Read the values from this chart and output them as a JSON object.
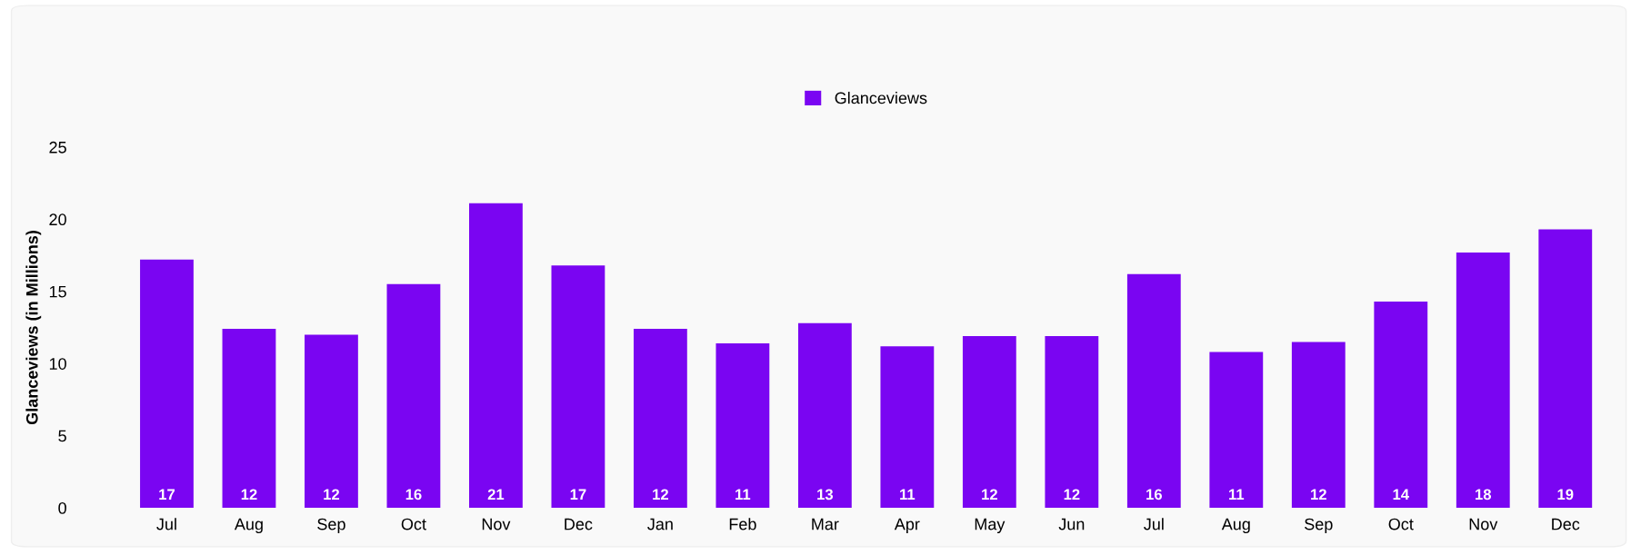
{
  "chart_data": {
    "type": "bar",
    "ylabel": "Glanceviews (in Millions)",
    "categories": [
      "Jul",
      "Aug",
      "Sep",
      "Oct",
      "Nov",
      "Dec",
      "Jan",
      "Feb",
      "Mar",
      "Apr",
      "May",
      "Jun",
      "Jul",
      "Aug",
      "Sep",
      "Oct",
      "Nov",
      "Dec"
    ],
    "series": [
      {
        "name": "Glanceviews",
        "color": "#7a05f2",
        "values": [
          17.2,
          12.4,
          12.0,
          15.5,
          21.1,
          16.8,
          12.4,
          11.4,
          12.8,
          11.2,
          11.9,
          11.9,
          16.2,
          10.8,
          11.5,
          14.3,
          17.7,
          19.3
        ],
        "value_labels": [
          "17",
          "12",
          "12",
          "16",
          "21",
          "17",
          "12",
          "11",
          "13",
          "11",
          "12",
          "12",
          "16",
          "11",
          "12",
          "14",
          "18",
          "19"
        ]
      }
    ],
    "ylim": [
      0,
      25
    ],
    "yticks": [
      0,
      5,
      10,
      15,
      20,
      25
    ],
    "grid": false,
    "legend": "top"
  }
}
